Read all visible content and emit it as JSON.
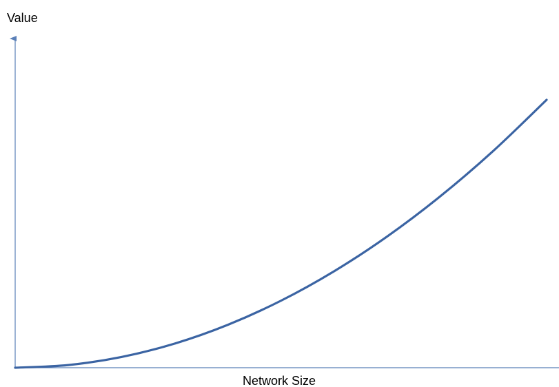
{
  "chart_data": {
    "type": "line",
    "title": "",
    "xlabel": "Network Size",
    "ylabel": "Value",
    "grid": false,
    "legend": "none",
    "x_ticks": [],
    "y_ticks": [],
    "xlim": [
      0,
      1
    ],
    "ylim": [
      0,
      1
    ],
    "series": [
      {
        "values_x": [
          0,
          0.1,
          0.2,
          0.3,
          0.4,
          0.5,
          0.6,
          0.7,
          0.8,
          0.9,
          1.0
        ],
        "values_y": [
          0,
          0.01,
          0.04,
          0.09,
          0.16,
          0.25,
          0.36,
          0.49,
          0.64,
          0.81,
          1.0
        ]
      }
    ],
    "colors": {
      "line": "#3b64a3",
      "axis": "#5b80b8"
    }
  }
}
